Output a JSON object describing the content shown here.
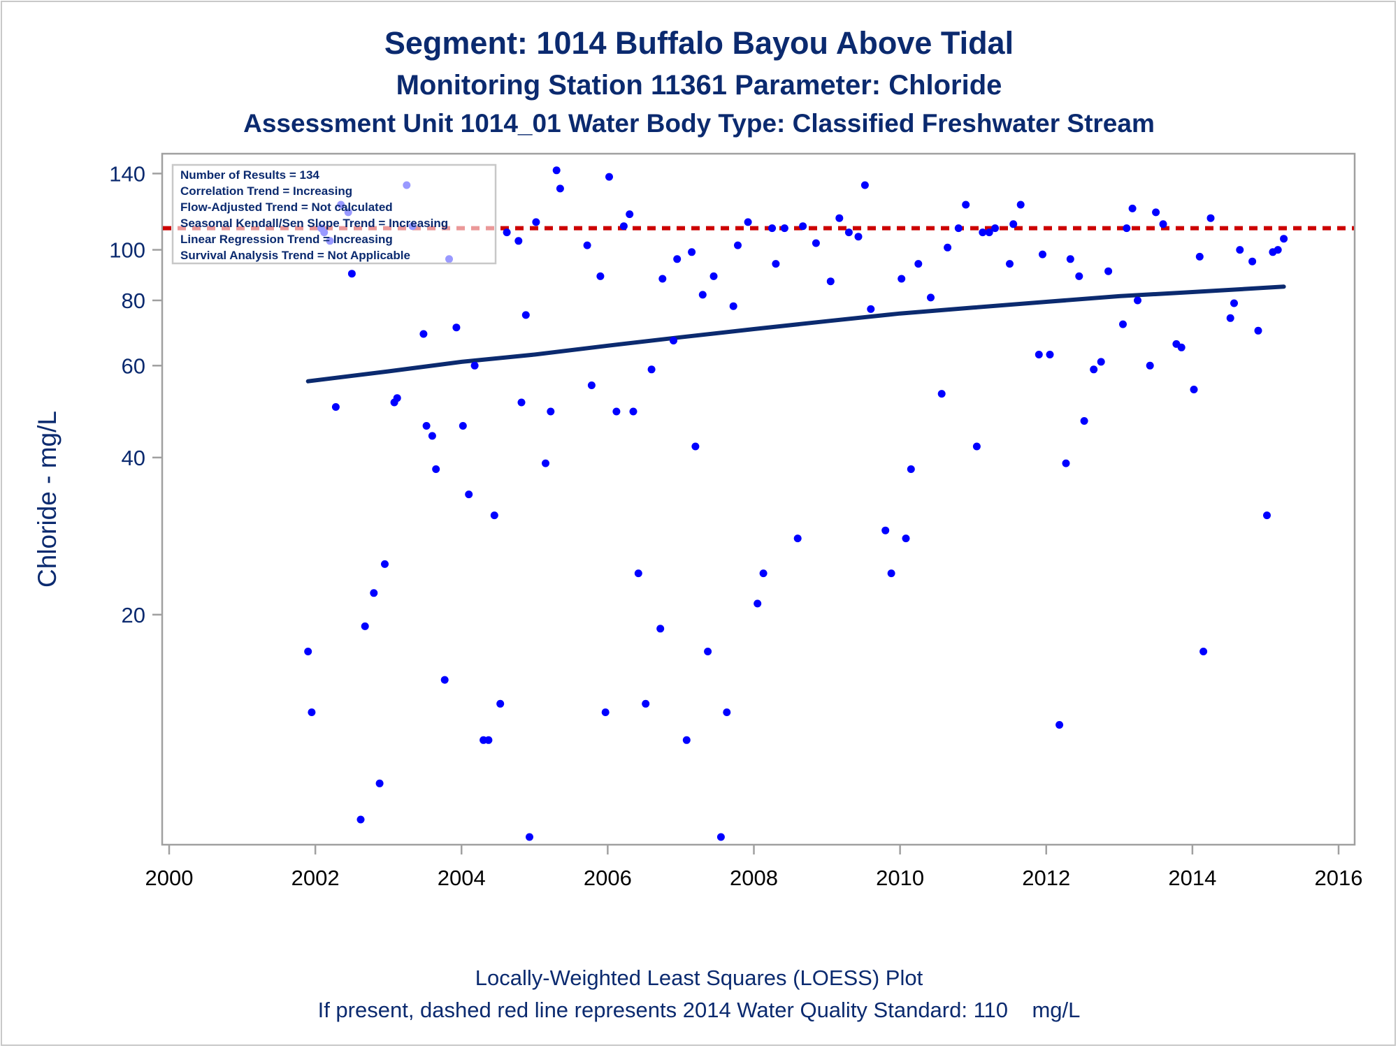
{
  "titles": {
    "line1": "Segment: 1014  Buffalo Bayou Above Tidal",
    "line2": "Monitoring Station 11361 Parameter: Chloride",
    "line3": "Assessment Unit 1014_01   Water Body Type: Classified Freshwater Stream"
  },
  "footnotes": {
    "line1": "Locally-Weighted Least Squares (LOESS) Plot",
    "line2": "If present, dashed red line represents 2014 Water Quality Standard: 110    mg/L"
  },
  "colors": {
    "points": "#0000ff",
    "trend": "#0b2a6f",
    "standard": "#cc0000",
    "text": "#0b2a6f",
    "axis": "#a0a0a0"
  },
  "chart_data": {
    "type": "scatter",
    "ylabel": "Chloride - mg/L",
    "xlabel": "",
    "y_scale": "log",
    "xlim": [
      2000,
      2016
    ],
    "ylim": [
      7.5,
      145
    ],
    "x_ticks": [
      2000,
      2002,
      2004,
      2006,
      2008,
      2010,
      2012,
      2014,
      2016
    ],
    "y_ticks": [
      20,
      40,
      60,
      80,
      100,
      140
    ],
    "standard_line": {
      "y": 110,
      "style": "dashed",
      "color": "#cc0000"
    },
    "stats_box": [
      "Number of Results = 134",
      "Correlation Trend = Increasing",
      "Flow-Adjusted Trend = Not calculated",
      "Seasonal Kendall/Sen Slope Trend = Increasing",
      "Linear Regression Trend = Increasing",
      "Survival Analysis Trend = Not Applicable"
    ],
    "trend_line": [
      [
        2001.9,
        56
      ],
      [
        2003,
        58.5
      ],
      [
        2004,
        61
      ],
      [
        2005,
        63
      ],
      [
        2006,
        65.5
      ],
      [
        2007,
        68
      ],
      [
        2008,
        70.5
      ],
      [
        2009,
        73
      ],
      [
        2010,
        75.5
      ],
      [
        2011,
        77.5
      ],
      [
        2012,
        79.5
      ],
      [
        2013,
        81.5
      ],
      [
        2014,
        83
      ],
      [
        2015.25,
        85
      ]
    ],
    "points": [
      [
        2001.9,
        17
      ],
      [
        2001.95,
        13
      ],
      [
        2002.08,
        110
      ],
      [
        2002.12,
        108
      ],
      [
        2002.2,
        104
      ],
      [
        2002.28,
        50
      ],
      [
        2002.35,
        122
      ],
      [
        2002.45,
        118
      ],
      [
        2002.5,
        90
      ],
      [
        2002.62,
        8.1
      ],
      [
        2002.68,
        19
      ],
      [
        2002.8,
        22
      ],
      [
        2002.88,
        9.5
      ],
      [
        2002.95,
        25
      ],
      [
        2003.08,
        51
      ],
      [
        2003.12,
        52
      ],
      [
        2003.25,
        133
      ],
      [
        2003.33,
        111
      ],
      [
        2003.48,
        69
      ],
      [
        2003.52,
        46
      ],
      [
        2003.6,
        44
      ],
      [
        2003.65,
        38
      ],
      [
        2003.77,
        15
      ],
      [
        2003.83,
        96
      ],
      [
        2003.93,
        71
      ],
      [
        2004.02,
        46
      ],
      [
        2004.1,
        34
      ],
      [
        2004.18,
        60
      ],
      [
        2004.3,
        11.5
      ],
      [
        2004.37,
        11.5
      ],
      [
        2004.45,
        31
      ],
      [
        2004.53,
        13.5
      ],
      [
        2004.62,
        108
      ],
      [
        2004.78,
        104
      ],
      [
        2004.82,
        51
      ],
      [
        2004.88,
        75
      ],
      [
        2004.93,
        7.5
      ],
      [
        2005.02,
        113
      ],
      [
        2005.15,
        39
      ],
      [
        2005.22,
        49
      ],
      [
        2005.3,
        142
      ],
      [
        2005.35,
        131
      ],
      [
        2005.72,
        102
      ],
      [
        2005.78,
        55
      ],
      [
        2005.9,
        89
      ],
      [
        2005.97,
        13
      ],
      [
        2006.02,
        138
      ],
      [
        2006.12,
        49
      ],
      [
        2006.22,
        111
      ],
      [
        2006.3,
        117
      ],
      [
        2006.35,
        49
      ],
      [
        2006.42,
        24
      ],
      [
        2006.52,
        13.5
      ],
      [
        2006.6,
        59
      ],
      [
        2006.72,
        18.8
      ],
      [
        2006.75,
        88
      ],
      [
        2006.9,
        67
      ],
      [
        2006.95,
        96
      ],
      [
        2007.08,
        11.5
      ],
      [
        2007.15,
        99
      ],
      [
        2007.2,
        42
      ],
      [
        2007.3,
        82
      ],
      [
        2007.37,
        17
      ],
      [
        2007.45,
        89
      ],
      [
        2007.55,
        7.5
      ],
      [
        2007.63,
        13
      ],
      [
        2007.72,
        78
      ],
      [
        2007.78,
        102
      ],
      [
        2007.92,
        113
      ],
      [
        2008.05,
        21
      ],
      [
        2008.13,
        24
      ],
      [
        2008.25,
        110
      ],
      [
        2008.3,
        94
      ],
      [
        2008.42,
        110
      ],
      [
        2008.6,
        28
      ],
      [
        2008.67,
        111
      ],
      [
        2008.85,
        103
      ],
      [
        2009.05,
        87
      ],
      [
        2009.17,
        115
      ],
      [
        2009.3,
        108
      ],
      [
        2009.43,
        106
      ],
      [
        2009.52,
        133
      ],
      [
        2009.6,
        77
      ],
      [
        2009.8,
        29
      ],
      [
        2009.88,
        24
      ],
      [
        2010.02,
        88
      ],
      [
        2010.08,
        28
      ],
      [
        2010.15,
        38
      ],
      [
        2010.25,
        94
      ],
      [
        2010.42,
        81
      ],
      [
        2010.57,
        53
      ],
      [
        2010.65,
        101
      ],
      [
        2010.8,
        110
      ],
      [
        2010.9,
        122
      ],
      [
        2011.05,
        42
      ],
      [
        2011.13,
        108
      ],
      [
        2011.22,
        108
      ],
      [
        2011.3,
        110
      ],
      [
        2011.5,
        94
      ],
      [
        2011.55,
        112
      ],
      [
        2011.65,
        122
      ],
      [
        2011.9,
        63
      ],
      [
        2011.95,
        98
      ],
      [
        2012.05,
        63
      ],
      [
        2012.18,
        12.3
      ],
      [
        2012.27,
        39
      ],
      [
        2012.33,
        96
      ],
      [
        2012.45,
        89
      ],
      [
        2012.52,
        47
      ],
      [
        2012.65,
        59
      ],
      [
        2012.75,
        61
      ],
      [
        2012.85,
        91
      ],
      [
        2013.05,
        72
      ],
      [
        2013.1,
        110
      ],
      [
        2013.18,
        120
      ],
      [
        2013.25,
        80
      ],
      [
        2013.42,
        60
      ],
      [
        2013.5,
        118
      ],
      [
        2013.6,
        112
      ],
      [
        2013.78,
        66
      ],
      [
        2013.85,
        65
      ],
      [
        2014.02,
        54
      ],
      [
        2014.1,
        97
      ],
      [
        2014.15,
        17
      ],
      [
        2014.25,
        115
      ],
      [
        2014.52,
        74
      ],
      [
        2014.57,
        79
      ],
      [
        2014.65,
        100
      ],
      [
        2014.82,
        95
      ],
      [
        2014.9,
        70
      ],
      [
        2015.02,
        31
      ],
      [
        2015.1,
        99
      ],
      [
        2015.17,
        100
      ],
      [
        2015.25,
        105
      ]
    ]
  }
}
